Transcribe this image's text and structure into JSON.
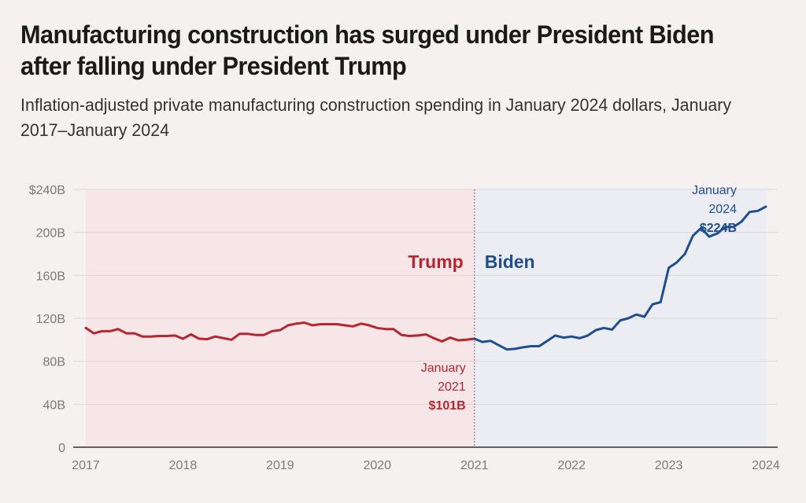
{
  "header": {
    "title": "Manufacturing construction has surged under President Biden after falling under President Trump",
    "subtitle": "Inflation-adjusted private manufacturing construction spending in January 2024 dollars, January 2017–January 2024"
  },
  "colors": {
    "trump": "#b5262f",
    "biden": "#1f4e8f",
    "trump_band": "#f6e6e7",
    "biden_band": "#ebedf2",
    "background": "#f6f1f1",
    "grid": "#dcd6d6",
    "axis": "#333333",
    "tick_text": "#7a7a7a"
  },
  "chart_data": {
    "type": "line",
    "title": "Manufacturing construction has surged under President Biden after falling under President Trump",
    "subtitle": "Inflation-adjusted private manufacturing construction spending in January 2024 dollars, January 2017–January 2024",
    "xlabel": "",
    "ylabel": "",
    "xlim": [
      2017,
      2024
    ],
    "ylim": [
      0,
      240
    ],
    "grid": true,
    "y_ticks": [
      0,
      40,
      80,
      120,
      160,
      200,
      240
    ],
    "y_tick_labels": [
      "0",
      "40B",
      "80B",
      "120B",
      "160B",
      "200B",
      "$240B"
    ],
    "x_ticks": [
      2017,
      2018,
      2019,
      2020,
      2021,
      2022,
      2023,
      2024
    ],
    "x_tick_labels": [
      "2017",
      "2018",
      "2019",
      "2020",
      "2021",
      "2022",
      "2023",
      "2024"
    ],
    "era_divider": 2021,
    "eras": [
      {
        "name": "Trump",
        "start": 2017,
        "end": 2021
      },
      {
        "name": "Biden",
        "start": 2021,
        "end": 2024
      }
    ],
    "series": [
      {
        "name": "Trump",
        "x": [
          2017.0,
          2017.083,
          2017.167,
          2017.25,
          2017.333,
          2017.417,
          2017.5,
          2017.583,
          2017.667,
          2017.75,
          2017.833,
          2017.917,
          2018.0,
          2018.083,
          2018.167,
          2018.25,
          2018.333,
          2018.417,
          2018.5,
          2018.583,
          2018.667,
          2018.75,
          2018.833,
          2018.917,
          2019.0,
          2019.083,
          2019.167,
          2019.25,
          2019.333,
          2019.417,
          2019.5,
          2019.583,
          2019.667,
          2019.75,
          2019.833,
          2019.917,
          2020.0,
          2020.083,
          2020.167,
          2020.25,
          2020.333,
          2020.417,
          2020.5,
          2020.583,
          2020.667,
          2020.75,
          2020.833,
          2020.917,
          2021.0
        ],
        "values": [
          111,
          106,
          108,
          108,
          110,
          106,
          106,
          103,
          103,
          103.5,
          103.5,
          104,
          101,
          105,
          101,
          100.5,
          103,
          101.5,
          100,
          105.5,
          105.5,
          104.5,
          104.5,
          108,
          109,
          113.5,
          115,
          116,
          113.5,
          114.5,
          114.5,
          114.5,
          113.5,
          112.5,
          115,
          113.5,
          111,
          110,
          110,
          104.5,
          103.5,
          104,
          105,
          101.5,
          98.5,
          102,
          99.5,
          100,
          101
        ]
      },
      {
        "name": "Biden",
        "x": [
          2021.0,
          2021.083,
          2021.167,
          2021.25,
          2021.333,
          2021.417,
          2021.5,
          2021.583,
          2021.667,
          2021.75,
          2021.833,
          2021.917,
          2022.0,
          2022.083,
          2022.167,
          2022.25,
          2022.333,
          2022.417,
          2022.5,
          2022.583,
          2022.667,
          2022.75,
          2022.833,
          2022.917,
          2023.0,
          2023.083,
          2023.167,
          2023.25,
          2023.333,
          2023.417,
          2023.5,
          2023.583,
          2023.667,
          2023.75,
          2023.833,
          2023.917,
          2024.0
        ],
        "values": [
          101,
          98,
          99,
          95,
          91,
          91.5,
          93,
          94,
          94,
          99,
          104,
          102,
          103,
          101.5,
          104,
          109,
          111,
          109.5,
          118,
          120,
          123.5,
          121.5,
          133,
          135,
          167,
          172,
          180,
          197,
          204,
          196,
          199,
          205,
          205,
          210,
          219,
          220,
          224
        ]
      }
    ],
    "annotations": [
      {
        "series": "Trump",
        "x": 2021,
        "value": 101,
        "label_line1": "January",
        "label_line2": "2021",
        "label_value": "$101B"
      },
      {
        "series": "Biden",
        "x": 2024,
        "value": 224,
        "label_line1": "January",
        "label_line2": "2024",
        "label_value": "$224B"
      }
    ]
  }
}
